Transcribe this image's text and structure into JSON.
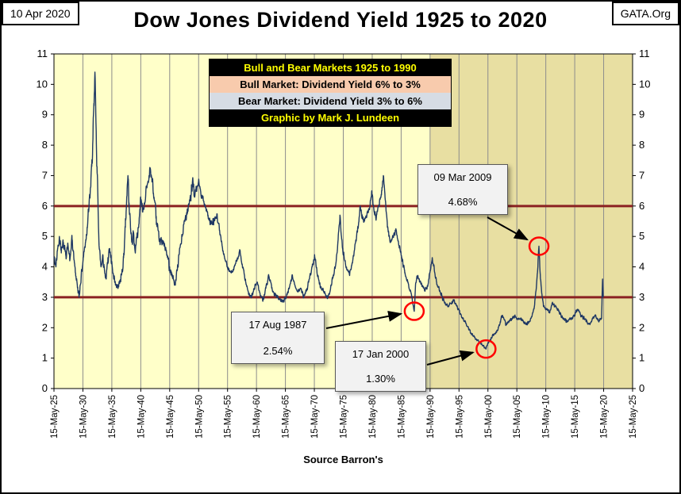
{
  "header": {
    "date": "10 Apr 2020",
    "brand": "GATA.Org",
    "title": "Dow Jones Dividend Yield 1925 to 2020"
  },
  "legend": {
    "rows": [
      {
        "label": "Bull and Bear Markets 1925 to 1990",
        "bg": "#000000",
        "fg": "#FFFF00"
      },
      {
        "label": "Bull Market: Dividend Yield 6% to 3%",
        "bg": "#F8CBAD",
        "fg": "#000000"
      },
      {
        "label": "Bear Market: Dividend Yield 3% to 6%",
        "bg": "#D6DCE4",
        "fg": "#000000"
      },
      {
        "label": "Graphic by Mark J. Lundeen",
        "bg": "#000000",
        "fg": "#FFFF00"
      }
    ]
  },
  "chart_data": {
    "type": "line",
    "title": "Dow Jones Dividend Yield 1925 to 2020",
    "xlabel": "Source Barron's",
    "ylabel": "",
    "ylim": [
      0,
      11
    ],
    "y_ticks": [
      0,
      1,
      2,
      3,
      4,
      5,
      6,
      7,
      8,
      9,
      10,
      11
    ],
    "x_range_years": [
      1925.37,
      2025.37
    ],
    "x_tick_labels": [
      "15-May-25",
      "15-May-30",
      "15-May-35",
      "15-May-40",
      "15-May-45",
      "15-May-50",
      "15-May-55",
      "15-May-60",
      "15-May-65",
      "15-May-70",
      "15-May-75",
      "15-May-80",
      "15-May-85",
      "15-May-90",
      "15-May-95",
      "15-May-00",
      "15-May-05",
      "15-May-10",
      "15-May-15",
      "15-May-20",
      "15-May-25"
    ],
    "grid": "vertical-only",
    "legend_position": "top-center-overlay",
    "regions": [
      {
        "name": "bull-bear-era-1925-1990",
        "from": 1925.37,
        "to": 1990.37,
        "color": "#FFFFC9"
      },
      {
        "name": "post-1990-era",
        "from": 1990.37,
        "to": 2025.37,
        "color": "#E8DFA2"
      }
    ],
    "hlines": [
      {
        "y": 3,
        "color": "#8B2222"
      },
      {
        "y": 6,
        "color": "#8B2222"
      }
    ],
    "series": [
      {
        "name": "Dow Jones Dividend Yield",
        "color": "#1F3864",
        "points": [
          [
            1925.4,
            4.3
          ],
          [
            1925.7,
            4.0
          ],
          [
            1926.0,
            4.6
          ],
          [
            1926.3,
            5.0
          ],
          [
            1926.6,
            4.6
          ],
          [
            1927.0,
            4.8
          ],
          [
            1927.4,
            4.4
          ],
          [
            1927.8,
            4.7
          ],
          [
            1928.1,
            4.2
          ],
          [
            1928.5,
            4.9
          ],
          [
            1928.8,
            4.3
          ],
          [
            1929.1,
            3.8
          ],
          [
            1929.4,
            3.4
          ],
          [
            1929.7,
            3.0
          ],
          [
            1929.9,
            3.4
          ],
          [
            1930.2,
            3.9
          ],
          [
            1930.5,
            4.4
          ],
          [
            1930.8,
            4.8
          ],
          [
            1931.1,
            5.3
          ],
          [
            1931.4,
            5.9
          ],
          [
            1931.7,
            6.6
          ],
          [
            1931.9,
            7.3
          ],
          [
            1932.1,
            8.2
          ],
          [
            1932.3,
            9.3
          ],
          [
            1932.45,
            10.4
          ],
          [
            1932.6,
            9.0
          ],
          [
            1932.8,
            7.3
          ],
          [
            1933.0,
            5.9
          ],
          [
            1933.2,
            4.6
          ],
          [
            1933.5,
            4.0
          ],
          [
            1933.8,
            4.4
          ],
          [
            1934.1,
            3.9
          ],
          [
            1934.4,
            3.6
          ],
          [
            1934.7,
            4.3
          ],
          [
            1935.0,
            4.6
          ],
          [
            1935.3,
            4.1
          ],
          [
            1935.7,
            3.6
          ],
          [
            1936.0,
            3.4
          ],
          [
            1936.4,
            3.3
          ],
          [
            1936.8,
            3.5
          ],
          [
            1937.1,
            3.8
          ],
          [
            1937.4,
            4.3
          ],
          [
            1937.7,
            5.3
          ],
          [
            1937.95,
            6.3
          ],
          [
            1938.15,
            7.0
          ],
          [
            1938.35,
            6.1
          ],
          [
            1938.6,
            5.3
          ],
          [
            1938.85,
            4.8
          ],
          [
            1939.1,
            5.1
          ],
          [
            1939.4,
            4.5
          ],
          [
            1939.7,
            5.0
          ],
          [
            1940.0,
            5.3
          ],
          [
            1940.35,
            6.3
          ],
          [
            1940.7,
            5.8
          ],
          [
            1941.0,
            6.1
          ],
          [
            1941.4,
            6.6
          ],
          [
            1941.8,
            7.0
          ],
          [
            1942.05,
            7.2
          ],
          [
            1942.35,
            6.8
          ],
          [
            1942.7,
            6.2
          ],
          [
            1943.0,
            5.6
          ],
          [
            1943.5,
            5.0
          ],
          [
            1944.0,
            4.8
          ],
          [
            1944.5,
            4.7
          ],
          [
            1945.0,
            4.3
          ],
          [
            1945.5,
            3.9
          ],
          [
            1946.0,
            3.6
          ],
          [
            1946.35,
            3.4
          ],
          [
            1946.7,
            3.9
          ],
          [
            1947.0,
            4.4
          ],
          [
            1947.5,
            5.0
          ],
          [
            1948.0,
            5.5
          ],
          [
            1948.4,
            5.9
          ],
          [
            1948.8,
            6.2
          ],
          [
            1949.1,
            6.4
          ],
          [
            1949.4,
            6.8
          ],
          [
            1949.7,
            6.3
          ],
          [
            1950.0,
            6.5
          ],
          [
            1950.35,
            6.8
          ],
          [
            1950.7,
            6.5
          ],
          [
            1951.0,
            6.3
          ],
          [
            1951.5,
            6.0
          ],
          [
            1952.0,
            5.7
          ],
          [
            1952.5,
            5.4
          ],
          [
            1953.0,
            5.5
          ],
          [
            1953.5,
            5.7
          ],
          [
            1954.0,
            5.2
          ],
          [
            1954.5,
            4.6
          ],
          [
            1955.0,
            4.2
          ],
          [
            1955.5,
            3.9
          ],
          [
            1956.0,
            3.8
          ],
          [
            1956.5,
            4.0
          ],
          [
            1957.0,
            4.2
          ],
          [
            1957.5,
            4.5
          ],
          [
            1958.0,
            4.0
          ],
          [
            1958.5,
            3.5
          ],
          [
            1959.0,
            3.1
          ],
          [
            1959.5,
            3.0
          ],
          [
            1960.0,
            3.3
          ],
          [
            1960.5,
            3.5
          ],
          [
            1961.0,
            3.1
          ],
          [
            1961.5,
            2.9
          ],
          [
            1962.0,
            3.3
          ],
          [
            1962.5,
            3.7
          ],
          [
            1963.0,
            3.3
          ],
          [
            1963.5,
            3.1
          ],
          [
            1964.0,
            3.0
          ],
          [
            1964.5,
            2.9
          ],
          [
            1965.0,
            2.9
          ],
          [
            1965.5,
            3.0
          ],
          [
            1966.0,
            3.3
          ],
          [
            1966.5,
            3.7
          ],
          [
            1967.0,
            3.4
          ],
          [
            1967.5,
            3.2
          ],
          [
            1968.0,
            3.3
          ],
          [
            1968.5,
            3.0
          ],
          [
            1969.0,
            3.2
          ],
          [
            1969.5,
            3.6
          ],
          [
            1970.0,
            4.0
          ],
          [
            1970.4,
            4.4
          ],
          [
            1970.8,
            3.9
          ],
          [
            1971.1,
            3.6
          ],
          [
            1971.5,
            3.3
          ],
          [
            1972.0,
            3.2
          ],
          [
            1972.5,
            3.0
          ],
          [
            1973.0,
            3.1
          ],
          [
            1973.5,
            3.6
          ],
          [
            1974.0,
            4.0
          ],
          [
            1974.4,
            4.7
          ],
          [
            1974.8,
            5.7
          ],
          [
            1975.0,
            5.1
          ],
          [
            1975.3,
            4.5
          ],
          [
            1975.7,
            4.2
          ],
          [
            1976.0,
            3.9
          ],
          [
            1976.5,
            3.8
          ],
          [
            1977.0,
            4.2
          ],
          [
            1977.5,
            4.8
          ],
          [
            1978.0,
            5.4
          ],
          [
            1978.3,
            6.0
          ],
          [
            1978.6,
            5.6
          ],
          [
            1979.0,
            5.5
          ],
          [
            1979.5,
            5.8
          ],
          [
            1980.0,
            6.0
          ],
          [
            1980.3,
            6.5
          ],
          [
            1980.7,
            5.8
          ],
          [
            1981.0,
            5.6
          ],
          [
            1981.5,
            6.0
          ],
          [
            1982.0,
            6.5
          ],
          [
            1982.3,
            7.0
          ],
          [
            1982.7,
            6.1
          ],
          [
            1983.0,
            5.3
          ],
          [
            1983.5,
            4.8
          ],
          [
            1984.0,
            5.0
          ],
          [
            1984.5,
            5.2
          ],
          [
            1985.0,
            4.7
          ],
          [
            1985.5,
            4.3
          ],
          [
            1986.0,
            3.8
          ],
          [
            1986.5,
            3.5
          ],
          [
            1987.0,
            3.2
          ],
          [
            1987.3,
            2.9
          ],
          [
            1987.63,
            2.54
          ],
          [
            1987.85,
            3.4
          ],
          [
            1988.1,
            3.7
          ],
          [
            1988.5,
            3.6
          ],
          [
            1989.0,
            3.4
          ],
          [
            1989.5,
            3.2
          ],
          [
            1990.0,
            3.4
          ],
          [
            1990.4,
            3.9
          ],
          [
            1990.75,
            4.3
          ],
          [
            1991.1,
            3.9
          ],
          [
            1991.5,
            3.5
          ],
          [
            1992.0,
            3.2
          ],
          [
            1992.5,
            3.0
          ],
          [
            1993.0,
            2.8
          ],
          [
            1993.5,
            2.7
          ],
          [
            1994.0,
            2.8
          ],
          [
            1994.5,
            2.9
          ],
          [
            1995.0,
            2.7
          ],
          [
            1995.5,
            2.5
          ],
          [
            1996.0,
            2.3
          ],
          [
            1996.5,
            2.2
          ],
          [
            1997.0,
            2.0
          ],
          [
            1997.5,
            1.8
          ],
          [
            1998.0,
            1.7
          ],
          [
            1998.5,
            1.6
          ],
          [
            1999.0,
            1.5
          ],
          [
            1999.5,
            1.4
          ],
          [
            2000.04,
            1.3
          ],
          [
            2000.4,
            1.5
          ],
          [
            2000.8,
            1.6
          ],
          [
            2001.1,
            1.7
          ],
          [
            2001.5,
            1.8
          ],
          [
            2002.0,
            1.9
          ],
          [
            2002.5,
            2.2
          ],
          [
            2002.8,
            2.4
          ],
          [
            2003.1,
            2.3
          ],
          [
            2003.5,
            2.1
          ],
          [
            2004.0,
            2.2
          ],
          [
            2004.5,
            2.3
          ],
          [
            2005.0,
            2.4
          ],
          [
            2005.5,
            2.3
          ],
          [
            2006.0,
            2.3
          ],
          [
            2006.5,
            2.2
          ],
          [
            2007.0,
            2.1
          ],
          [
            2007.5,
            2.2
          ],
          [
            2008.0,
            2.4
          ],
          [
            2008.4,
            2.7
          ],
          [
            2008.8,
            3.5
          ],
          [
            2009.0,
            4.0
          ],
          [
            2009.19,
            4.68
          ],
          [
            2009.45,
            3.6
          ],
          [
            2009.7,
            3.1
          ],
          [
            2010.0,
            2.7
          ],
          [
            2010.5,
            2.6
          ],
          [
            2011.0,
            2.5
          ],
          [
            2011.5,
            2.8
          ],
          [
            2012.0,
            2.7
          ],
          [
            2012.5,
            2.6
          ],
          [
            2013.0,
            2.4
          ],
          [
            2013.5,
            2.3
          ],
          [
            2014.0,
            2.2
          ],
          [
            2014.5,
            2.3
          ],
          [
            2015.0,
            2.3
          ],
          [
            2015.5,
            2.5
          ],
          [
            2016.0,
            2.6
          ],
          [
            2016.5,
            2.4
          ],
          [
            2017.0,
            2.3
          ],
          [
            2017.5,
            2.2
          ],
          [
            2018.0,
            2.1
          ],
          [
            2018.5,
            2.3
          ],
          [
            2019.0,
            2.4
          ],
          [
            2019.5,
            2.2
          ],
          [
            2020.0,
            2.3
          ],
          [
            2020.18,
            3.6
          ],
          [
            2020.28,
            3.0
          ]
        ]
      }
    ],
    "annotations": [
      {
        "line1": "09 Mar 2009",
        "line2": "4.68%",
        "x": 2009.19,
        "y": 4.68,
        "circle_color": "#FF0000"
      },
      {
        "line1": "17 Aug 1987",
        "line2": "2.54%",
        "x": 1987.63,
        "y": 2.54,
        "circle_color": "#FF0000"
      },
      {
        "line1": "17 Jan 2000",
        "line2": "1.30%",
        "x": 2000.04,
        "y": 1.3,
        "circle_color": "#FF0000"
      }
    ]
  }
}
